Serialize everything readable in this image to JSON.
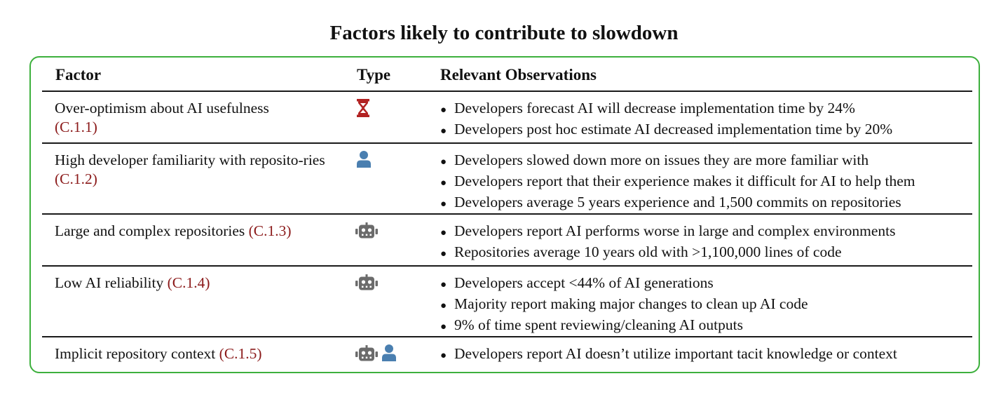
{
  "title": "Factors likely to contribute to slowdown",
  "table": {
    "headers": {
      "factor": "Factor",
      "type": "Type",
      "observations": "Relevant Observations"
    },
    "rows": [
      {
        "factor_text": "Over-optimism about AI usefulness",
        "ref": "C.1.1",
        "type_icons": [
          "hourglass-icon"
        ],
        "observations": [
          "Developers forecast AI will decrease implementation time by 24%",
          "Developers post hoc estimate AI decreased implementation time by 20%"
        ]
      },
      {
        "factor_text": "High developer familiarity with reposito-ries",
        "ref": "C.1.2",
        "type_icons": [
          "person-icon"
        ],
        "observations": [
          "Developers slowed down more on issues they are more familiar with",
          "Developers report that their experience makes it difficult for AI to help them",
          "Developers average 5 years experience and 1,500 commits on repositories"
        ]
      },
      {
        "factor_text": "Large and complex repositories",
        "ref": "C.1.3",
        "type_icons": [
          "robot-icon"
        ],
        "observations": [
          "Developers report AI performs worse in large and complex environments",
          "Repositories average 10 years old with >1,100,000 lines of code"
        ]
      },
      {
        "factor_text": "Low AI reliability",
        "ref": "C.1.4",
        "type_icons": [
          "robot-icon"
        ],
        "observations": [
          "Developers accept <44% of AI generations",
          "Majority report making major changes to clean up AI code",
          "9% of time spent reviewing/cleaning AI outputs"
        ]
      },
      {
        "factor_text": "Implicit repository context",
        "ref": "C.1.5",
        "type_icons": [
          "robot-icon",
          "person-icon"
        ],
        "observations": [
          "Developers report AI doesn’t utilize important tacit knowledge or context"
        ]
      }
    ]
  },
  "colors": {
    "frame_border": "#3db03d",
    "reference_link": "#8b1a1a",
    "hourglass": "#b22222",
    "person": "#4a7fb0",
    "robot": "#6b6b6b"
  }
}
